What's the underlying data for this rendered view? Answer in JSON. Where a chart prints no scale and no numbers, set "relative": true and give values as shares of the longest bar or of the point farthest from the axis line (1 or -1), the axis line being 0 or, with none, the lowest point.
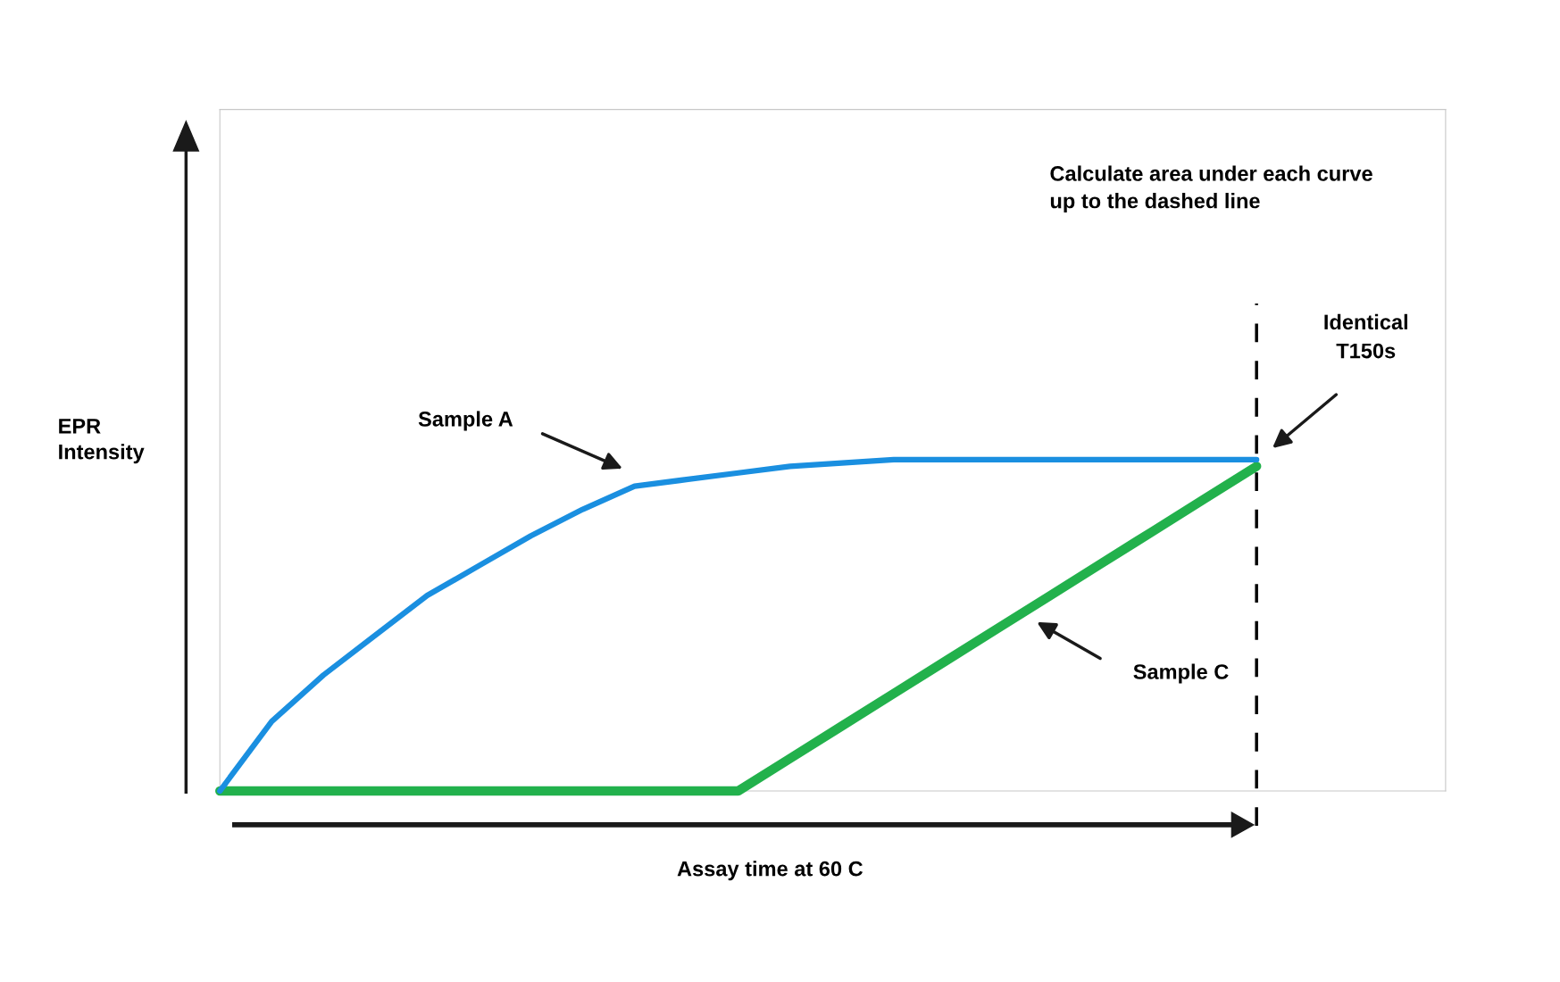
{
  "chart_data": {
    "type": "line",
    "relative": true,
    "xlabel": "Assay time at 60 C",
    "ylabel": "EPR\nIntensity",
    "categories": [
      null,
      null,
      null,
      null,
      null,
      null,
      null,
      null,
      null,
      null,
      null,
      null,
      null,
      null,
      null,
      null,
      null,
      null,
      null,
      null,
      null
    ],
    "series": [
      {
        "color": "#1a8fe0",
        "values": [
          0,
          0.21,
          0.35,
          0.47,
          0.59,
          0.68,
          0.77,
          0.85,
          0.92,
          0.94,
          0.96,
          0.98,
          0.99,
          1,
          1,
          1,
          1,
          1,
          1,
          1,
          1
        ]
      },
      {
        "color": "#22b14c",
        "values": [
          0,
          0,
          0,
          0,
          0,
          0,
          0,
          0,
          0,
          0,
          0,
          0.098,
          0.196,
          0.294,
          0.392,
          0.49,
          0.588,
          0.686,
          0.784,
          0.882,
          0.98
        ]
      }
    ],
    "annotations": [
      "Calculate area under each curve\nup to the dashed line",
      "Identical\nT150s",
      "Sample A",
      "Sample C"
    ],
    "marker": "none",
    "line_style": "solid"
  }
}
